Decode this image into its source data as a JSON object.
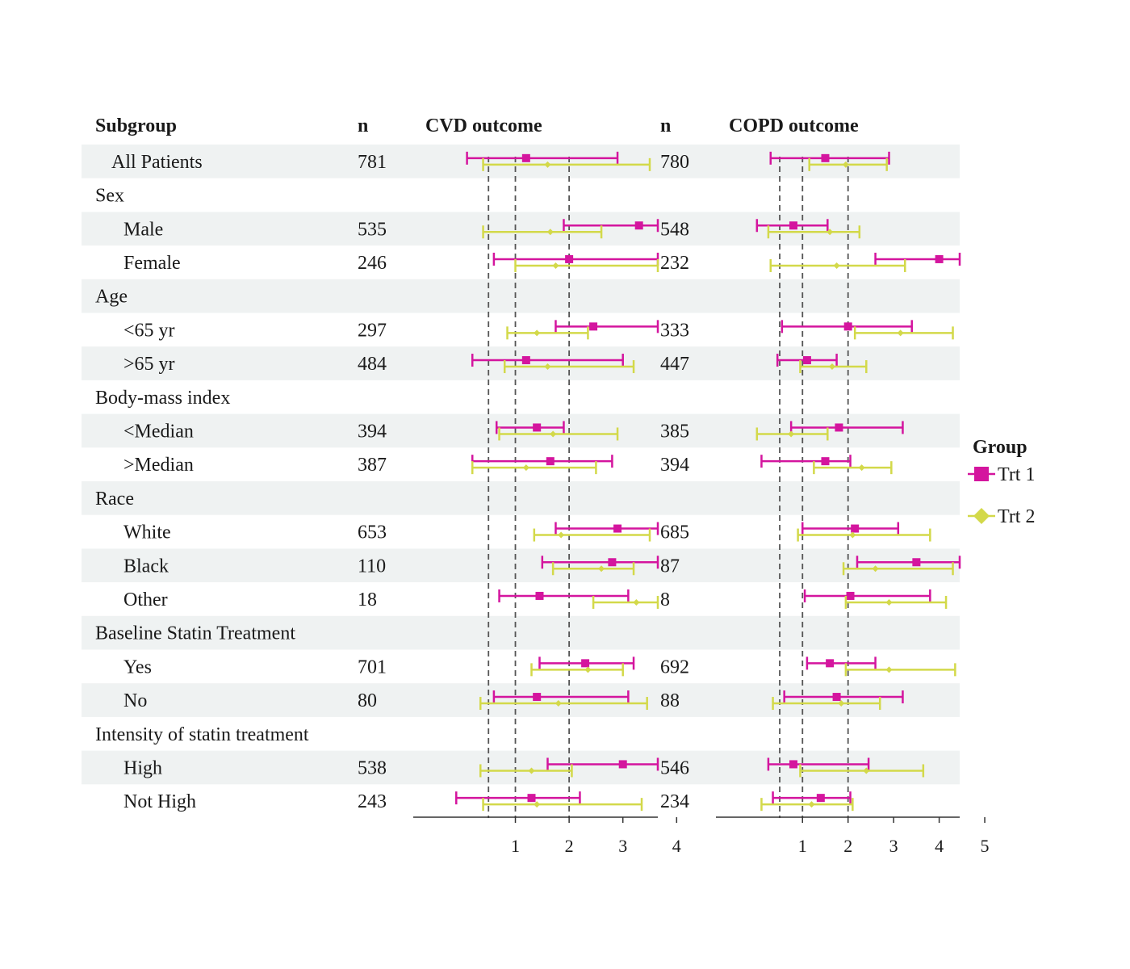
{
  "headers": {
    "subgroup": "Subgroup",
    "n1": "n",
    "panel1": "CVD outcome",
    "n2": "n",
    "panel2": "COPD outcome"
  },
  "legend": {
    "title": "Group",
    "items": [
      {
        "label": "Trt 1",
        "marker": "square",
        "color": "#d4159e"
      },
      {
        "label": "Trt 2",
        "marker": "diamond",
        "color": "#d3d94a"
      }
    ]
  },
  "colors": {
    "band": "#eff2f2",
    "trt1": "#d4159e",
    "trt2": "#d3d94a",
    "refline": "#555555"
  },
  "chart_data": {
    "type": "forest",
    "panels": [
      {
        "title": "CVD outcome",
        "xlim": [
          -0.9,
          3.65
        ],
        "ticks": [
          1,
          2,
          3,
          4
        ],
        "ref_lines": [
          0.5,
          1,
          2
        ]
      },
      {
        "title": "COPD outcome",
        "xlim": [
          -0.9,
          4.45
        ],
        "ticks": [
          1,
          2,
          3,
          4,
          5
        ],
        "ref_lines": [
          0.5,
          1,
          2
        ]
      }
    ],
    "rows": [
      {
        "label": "All Patients",
        "indent": 1,
        "shaded": true,
        "cvd": {
          "n": "781",
          "trt1": [
            1.2,
            0.1,
            2.9
          ],
          "trt2": [
            1.6,
            0.4,
            3.5
          ]
        },
        "copd": {
          "n": "780",
          "trt1": [
            1.5,
            0.3,
            2.9
          ],
          "trt2": [
            1.95,
            1.15,
            2.85
          ]
        }
      },
      {
        "label": "Sex",
        "indent": 0,
        "shaded": false
      },
      {
        "label": "Male",
        "indent": 2,
        "shaded": true,
        "cvd": {
          "n": "535",
          "trt1": [
            3.3,
            1.9,
            4.0
          ],
          "trt2": [
            1.65,
            0.4,
            2.6
          ]
        },
        "copd": {
          "n": "548",
          "trt1": [
            0.8,
            0.0,
            1.55
          ],
          "trt2": [
            1.6,
            0.25,
            2.25
          ]
        }
      },
      {
        "label": "Female",
        "indent": 2,
        "shaded": false,
        "cvd": {
          "n": "246",
          "trt1": [
            2.0,
            0.6,
            4.0
          ],
          "trt2": [
            1.75,
            1.0,
            3.7
          ]
        },
        "copd": {
          "n": "232",
          "trt1": [
            4.0,
            2.6,
            5.5
          ],
          "trt2": [
            1.75,
            0.3,
            3.25
          ]
        }
      },
      {
        "label": "Age",
        "indent": 0,
        "shaded": true
      },
      {
        "label": "<65 yr",
        "indent": 2,
        "shaded": false,
        "cvd": {
          "n": "297",
          "trt1": [
            2.45,
            1.75,
            3.7
          ],
          "trt2": [
            1.4,
            0.85,
            2.35
          ]
        },
        "copd": {
          "n": "333",
          "trt1": [
            2.0,
            0.55,
            3.4
          ],
          "trt2": [
            3.15,
            2.15,
            4.3
          ]
        }
      },
      {
        "label": ">65 yr",
        "indent": 2,
        "shaded": true,
        "cvd": {
          "n": "484",
          "trt1": [
            1.2,
            0.2,
            3.0
          ],
          "trt2": [
            1.6,
            0.8,
            3.2
          ]
        },
        "copd": {
          "n": "447",
          "trt1": [
            1.1,
            0.45,
            1.75
          ],
          "trt2": [
            1.65,
            0.95,
            2.4
          ]
        }
      },
      {
        "label": "Body-mass index",
        "indent": 0,
        "shaded": false
      },
      {
        "label": "<Median",
        "indent": 2,
        "shaded": true,
        "cvd": {
          "n": "394",
          "trt1": [
            1.4,
            0.65,
            1.9
          ],
          "trt2": [
            1.7,
            0.7,
            2.9
          ]
        },
        "copd": {
          "n": "385",
          "trt1": [
            1.8,
            0.75,
            3.2
          ],
          "trt2": [
            0.75,
            0.0,
            1.55
          ]
        }
      },
      {
        "label": ">Median",
        "indent": 2,
        "shaded": false,
        "cvd": {
          "n": "387",
          "trt1": [
            1.65,
            0.2,
            2.8
          ],
          "trt2": [
            1.2,
            0.2,
            2.5
          ]
        },
        "copd": {
          "n": "394",
          "trt1": [
            1.5,
            0.1,
            2.05
          ],
          "trt2": [
            2.3,
            1.25,
            2.95
          ]
        }
      },
      {
        "label": "Race",
        "indent": 0,
        "shaded": true
      },
      {
        "label": "White",
        "indent": 2,
        "shaded": false,
        "cvd": {
          "n": "653",
          "trt1": [
            2.9,
            1.75,
            4.3
          ],
          "trt2": [
            1.85,
            1.35,
            3.5
          ]
        },
        "copd": {
          "n": "685",
          "trt1": [
            2.15,
            1.0,
            3.1
          ],
          "trt2": [
            2.1,
            0.9,
            3.8
          ]
        }
      },
      {
        "label": "Black",
        "indent": 2,
        "shaded": true,
        "cvd": {
          "n": "110",
          "trt1": [
            2.8,
            1.5,
            4.0
          ],
          "trt2": [
            2.6,
            1.7,
            3.2
          ]
        },
        "copd": {
          "n": "87",
          "trt1": [
            3.5,
            2.2,
            5.5
          ],
          "trt2": [
            2.6,
            1.9,
            4.3
          ]
        }
      },
      {
        "label": "Other",
        "indent": 2,
        "shaded": false,
        "cvd": {
          "n": "18",
          "trt1": [
            1.45,
            0.7,
            3.1
          ],
          "trt2": [
            3.25,
            2.45,
            3.9
          ]
        },
        "copd": {
          "n": "8",
          "trt1": [
            2.05,
            1.05,
            3.8
          ],
          "trt2": [
            2.9,
            1.95,
            4.15
          ]
        }
      },
      {
        "label": "Baseline Statin Treatment",
        "indent": 0,
        "shaded": true
      },
      {
        "label": "Yes",
        "indent": 2,
        "shaded": false,
        "cvd": {
          "n": "701",
          "trt1": [
            2.3,
            1.45,
            3.2
          ],
          "trt2": [
            2.35,
            1.3,
            3.0
          ]
        },
        "copd": {
          "n": "692",
          "trt1": [
            1.6,
            1.1,
            2.6
          ],
          "trt2": [
            2.9,
            1.95,
            4.35
          ]
        }
      },
      {
        "label": "No",
        "indent": 2,
        "shaded": true,
        "cvd": {
          "n": "80",
          "trt1": [
            1.4,
            0.6,
            3.1
          ],
          "trt2": [
            1.8,
            0.35,
            3.45
          ]
        },
        "copd": {
          "n": "88",
          "trt1": [
            1.75,
            0.6,
            3.2
          ],
          "trt2": [
            1.85,
            0.35,
            2.7
          ]
        }
      },
      {
        "label": "Intensity of statin treatment",
        "indent": 0,
        "shaded": false
      },
      {
        "label": "High",
        "indent": 2,
        "shaded": true,
        "cvd": {
          "n": "538",
          "trt1": [
            3.0,
            1.6,
            4.6
          ],
          "trt2": [
            1.3,
            0.35,
            2.05
          ]
        },
        "copd": {
          "n": "546",
          "trt1": [
            0.8,
            0.25,
            2.45
          ],
          "trt2": [
            2.4,
            0.95,
            3.65
          ]
        }
      },
      {
        "label": "Not High",
        "indent": 2,
        "shaded": false,
        "cvd": {
          "n": "243",
          "trt1": [
            1.3,
            -0.1,
            2.2
          ],
          "trt2": [
            1.4,
            0.4,
            3.35
          ]
        },
        "copd": {
          "n": "234",
          "trt1": [
            1.4,
            0.35,
            2.05
          ],
          "trt2": [
            1.2,
            0.1,
            2.1
          ]
        }
      }
    ]
  }
}
